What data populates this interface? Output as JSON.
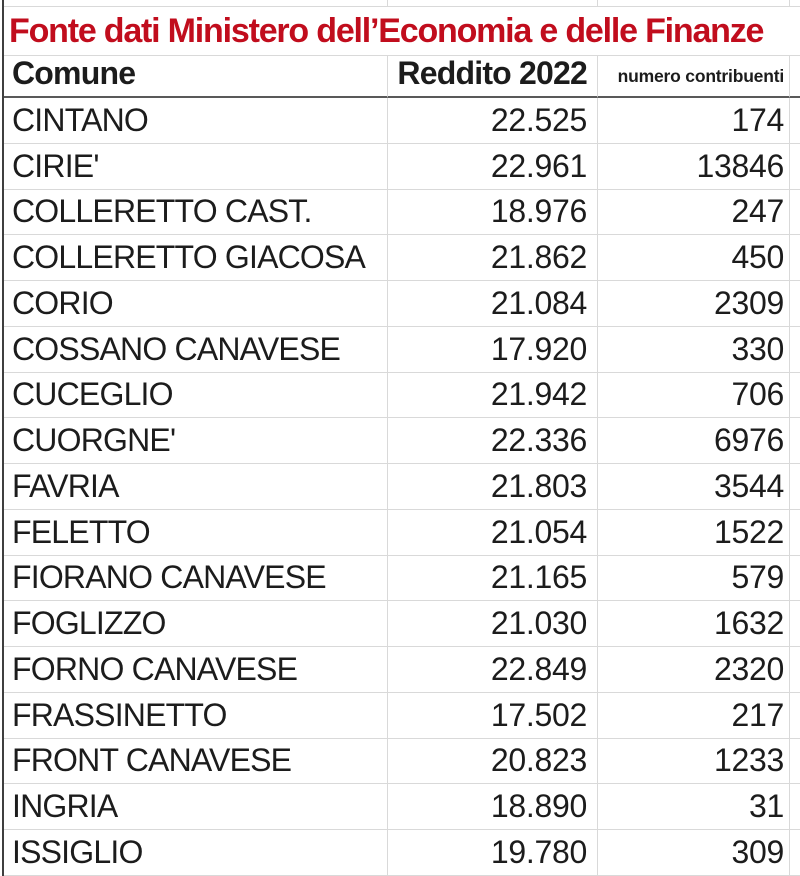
{
  "title": "Fonte dati Ministero dell’Economia e delle Finanze",
  "header": {
    "comune": "Comune",
    "reddito": "Reddito 2022",
    "contribuenti": "numero contribuenti"
  },
  "rows": [
    {
      "comune": "CINTANO",
      "reddito": "22.525",
      "contribuenti": "174"
    },
    {
      "comune": "CIRIE'",
      "reddito": "22.961",
      "contribuenti": "13846"
    },
    {
      "comune": "COLLERETTO CAST.",
      "reddito": "18.976",
      "contribuenti": "247"
    },
    {
      "comune": "COLLERETTO GIACOSA",
      "reddito": "21.862",
      "contribuenti": "450"
    },
    {
      "comune": "CORIO",
      "reddito": "21.084",
      "contribuenti": "2309"
    },
    {
      "comune": "COSSANO CANAVESE",
      "reddito": "17.920",
      "contribuenti": "330"
    },
    {
      "comune": "CUCEGLIO",
      "reddito": "21.942",
      "contribuenti": "706"
    },
    {
      "comune": "CUORGNE'",
      "reddito": "22.336",
      "contribuenti": "6976"
    },
    {
      "comune": "FAVRIA",
      "reddito": "21.803",
      "contribuenti": "3544"
    },
    {
      "comune": "FELETTO",
      "reddito": "21.054",
      "contribuenti": "1522"
    },
    {
      "comune": "FIORANO CANAVESE",
      "reddito": "21.165",
      "contribuenti": "579"
    },
    {
      "comune": "FOGLIZZO",
      "reddito": "21.030",
      "contribuenti": "1632"
    },
    {
      "comune": "FORNO CANAVESE",
      "reddito": "22.849",
      "contribuenti": "2320"
    },
    {
      "comune": "FRASSINETTO",
      "reddito": "17.502",
      "contribuenti": "217"
    },
    {
      "comune": "FRONT CANAVESE",
      "reddito": "20.823",
      "contribuenti": "1233"
    },
    {
      "comune": "INGRIA",
      "reddito": "18.890",
      "contribuenti": "31"
    },
    {
      "comune": "ISSIGLIO",
      "reddito": "19.780",
      "contribuenti": "309"
    }
  ],
  "colors": {
    "title_red": "#c10d1d",
    "text": "#1c1c1c",
    "grid_line": "#d9d9d9",
    "header_underline": "#595959",
    "left_edge": "#3f3f3f"
  }
}
